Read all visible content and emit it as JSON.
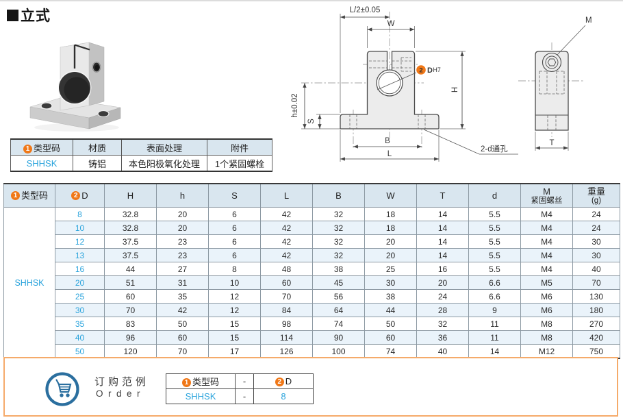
{
  "page": {
    "title": "立式"
  },
  "colors": {
    "accent_orange": "#f07818",
    "link_blue": "#29a3dc",
    "table_header_bg": "#d9e6ef",
    "alt_row_bg": "#eaf3fa",
    "order_border": "#f5aa6a",
    "cart_blue": "#2b6f9f"
  },
  "spec_table": {
    "badge1": "1",
    "headers": [
      "类型码",
      "材质",
      "表面处理",
      "附件"
    ],
    "row": [
      "SHHSK",
      "铸铝",
      "本色阳极氧化处理",
      "1个紧固螺栓"
    ]
  },
  "drawing": {
    "front_view": {
      "dim_half_length": "L/2±0.05",
      "dim_width": "W",
      "dim_height": "H",
      "dim_center_height": "h±0.02",
      "dim_base_thickness": "S",
      "dim_hole_pitch": "B",
      "dim_length": "L",
      "bore_badge": "2",
      "bore_label": "D",
      "bore_fit": "H7",
      "thru_hole_note": "2-d通孔"
    },
    "side_view": {
      "dim_thickness": "T",
      "screw_label": "M"
    }
  },
  "main_table": {
    "type_code": "SHHSK",
    "headers": [
      {
        "badge": "1",
        "label": "类型码"
      },
      {
        "badge": "2",
        "label": "D"
      },
      {
        "label": "H"
      },
      {
        "label": "h"
      },
      {
        "label": "S"
      },
      {
        "label": "L"
      },
      {
        "label": "B"
      },
      {
        "label": "W"
      },
      {
        "label": "T"
      },
      {
        "label": "d"
      },
      {
        "label": "M",
        "sub": "紧固螺丝"
      },
      {
        "label": "重量",
        "sub": "(g)"
      }
    ],
    "rows": [
      [
        "8",
        "32.8",
        "20",
        "6",
        "42",
        "32",
        "18",
        "14",
        "5.5",
        "M4",
        "24"
      ],
      [
        "10",
        "32.8",
        "20",
        "6",
        "42",
        "32",
        "18",
        "14",
        "5.5",
        "M4",
        "24"
      ],
      [
        "12",
        "37.5",
        "23",
        "6",
        "42",
        "32",
        "20",
        "14",
        "5.5",
        "M4",
        "30"
      ],
      [
        "13",
        "37.5",
        "23",
        "6",
        "42",
        "32",
        "20",
        "14",
        "5.5",
        "M4",
        "30"
      ],
      [
        "16",
        "44",
        "27",
        "8",
        "48",
        "38",
        "25",
        "16",
        "5.5",
        "M4",
        "40"
      ],
      [
        "20",
        "51",
        "31",
        "10",
        "60",
        "45",
        "30",
        "20",
        "6.6",
        "M5",
        "70"
      ],
      [
        "25",
        "60",
        "35",
        "12",
        "70",
        "56",
        "38",
        "24",
        "6.6",
        "M6",
        "130"
      ],
      [
        "30",
        "70",
        "42",
        "12",
        "84",
        "64",
        "44",
        "28",
        "9",
        "M6",
        "180"
      ],
      [
        "35",
        "83",
        "50",
        "15",
        "98",
        "74",
        "50",
        "32",
        "11",
        "M8",
        "270"
      ],
      [
        "40",
        "96",
        "60",
        "15",
        "114",
        "90",
        "60",
        "36",
        "11",
        "M8",
        "420"
      ],
      [
        "50",
        "120",
        "70",
        "17",
        "126",
        "100",
        "74",
        "40",
        "14",
        "M12",
        "750"
      ]
    ]
  },
  "order": {
    "title_cn": "订购范例",
    "title_en": "Order",
    "header": {
      "badge1": "1",
      "type_code_label": "类型码",
      "dash": "-",
      "badge2": "2",
      "d_label": "D"
    },
    "example": {
      "type_code": "SHHSK",
      "dash": "-",
      "d_value": "8"
    }
  }
}
